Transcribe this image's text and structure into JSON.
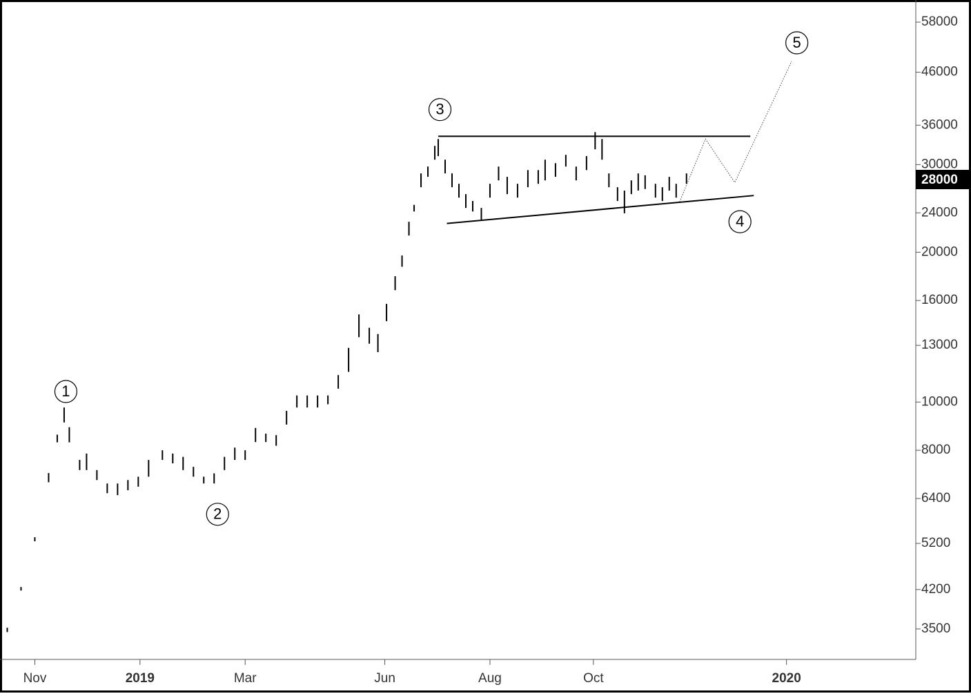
{
  "chart_data": {
    "type": "range-bar",
    "log_scale": true,
    "color": "#000000",
    "xlim": [
      0,
      528
    ],
    "ylim": [
      3040,
      64250
    ],
    "xticks": [
      {
        "value": 17,
        "label": "Nov"
      },
      {
        "value": 78,
        "label": "2019"
      },
      {
        "value": 139,
        "label": "Mar"
      },
      {
        "value": 220,
        "label": "Jun"
      },
      {
        "value": 281,
        "label": "Aug"
      },
      {
        "value": 341,
        "label": "Oct"
      },
      {
        "value": 453,
        "label": "2020"
      }
    ],
    "yticks": [
      3500,
      4200,
      5200,
      6400,
      8000,
      10000,
      13000,
      16000,
      20000,
      24000,
      30000,
      36000,
      46000,
      58000
    ],
    "last_price": 28000,
    "bars": {
      "x": [
        1,
        9,
        17,
        25,
        30,
        34,
        37,
        43,
        47,
        53,
        59,
        65,
        71,
        77,
        83,
        91,
        97,
        103,
        109,
        115,
        121,
        127,
        133,
        139,
        145,
        151,
        157,
        163,
        169,
        175,
        181,
        187,
        193,
        199,
        205,
        211,
        216,
        221,
        226,
        230,
        234,
        237,
        241,
        245,
        249,
        251,
        255,
        259,
        263,
        267,
        271,
        276,
        281,
        286,
        291,
        297,
        303,
        309,
        313,
        319,
        325,
        331,
        337,
        342,
        346,
        350,
        355,
        359,
        363,
        367,
        371,
        377,
        381,
        385,
        389,
        395
      ],
      "high": [
        3520,
        4250,
        5350,
        7200,
        8600,
        9750,
        8900,
        7650,
        7880,
        7300,
        6860,
        6860,
        6970,
        7080,
        7650,
        8000,
        7880,
        7760,
        7410,
        7080,
        7190,
        7760,
        8100,
        8000,
        8870,
        8640,
        8580,
        9600,
        10310,
        10310,
        10310,
        10310,
        11330,
        12850,
        15000,
        14100,
        13700,
        15750,
        17900,
        19700,
        23030,
        24900,
        28800,
        29730,
        32710,
        33770,
        30690,
        28800,
        27450,
        26170,
        25350,
        24550,
        27450,
        29730,
        28350,
        27450,
        29250,
        29250,
        30690,
        30200,
        31390,
        29730,
        31200,
        34870,
        33770,
        28800,
        27020,
        26600,
        27890,
        28800,
        28550,
        27450,
        27020,
        28350,
        27450,
        28800
      ],
      "low": [
        3450,
        4180,
        5250,
        6900,
        8300,
        9100,
        8300,
        7300,
        7300,
        6970,
        6560,
        6500,
        6650,
        6760,
        7080,
        7650,
        7530,
        7300,
        7080,
        6860,
        6860,
        7300,
        7650,
        7650,
        8310,
        8310,
        8170,
        9010,
        9750,
        9750,
        9750,
        9900,
        10640,
        11500,
        13500,
        13100,
        12600,
        14540,
        16780,
        18700,
        21610,
        24150,
        27020,
        28350,
        30690,
        31200,
        28800,
        27020,
        25750,
        24550,
        24150,
        23250,
        25750,
        27890,
        26170,
        25750,
        27020,
        27450,
        27890,
        28350,
        29730,
        27890,
        29250,
        32200,
        30690,
        27020,
        25350,
        23950,
        26170,
        26600,
        26800,
        25750,
        25350,
        26600,
        25750,
        27450
      ]
    },
    "trendlines": [
      {
        "x": [
          251,
          432
        ],
        "y": [
          34200,
          34200
        ]
      },
      {
        "x": [
          256,
          434
        ],
        "y": [
          22850,
          26000
        ]
      }
    ],
    "projection": {
      "x": [
        391,
        406,
        423,
        456
      ],
      "y": [
        25250,
        33770,
        27620,
        48400
      ]
    },
    "waves": [
      {
        "label": "1",
        "x": 35,
        "y": 10500
      },
      {
        "label": "2",
        "x": 123,
        "y": 5950
      },
      {
        "label": "3",
        "x": 252,
        "y": 38700
      },
      {
        "label": "4",
        "x": 426,
        "y": 23030
      },
      {
        "label": "5",
        "x": 459,
        "y": 52700
      }
    ]
  }
}
